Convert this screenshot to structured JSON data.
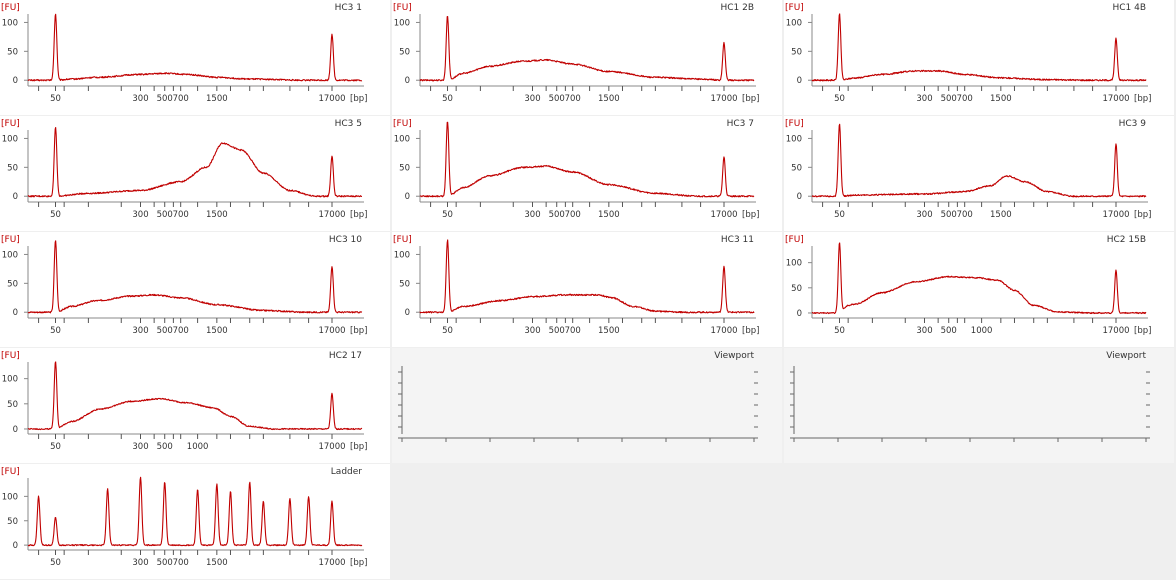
{
  "axis": {
    "y_unit": "[FU]",
    "x_unit": "[bp]",
    "x_scale": "log",
    "minor_ticks_bp": [
      35,
      50,
      60,
      100,
      200,
      300,
      400,
      500,
      600,
      700,
      1000,
      1500,
      2000,
      3000,
      4000,
      7000,
      10380,
      17000
    ]
  },
  "chart_data": [
    {
      "type": "line",
      "title": "HC3 1",
      "x_tick_labels": [
        "50",
        "300",
        "500",
        "700",
        "1500",
        "17000"
      ],
      "y_tick_labels": [
        "0",
        "50",
        "100"
      ],
      "ylim": [
        -10,
        125
      ],
      "lower_marker": {
        "bp": 50,
        "fu": 115
      },
      "upper_marker": {
        "bp": 17000,
        "fu": 80
      },
      "smear": [
        [
          50,
          0
        ],
        [
          70,
          2
        ],
        [
          120,
          5
        ],
        [
          300,
          10
        ],
        [
          500,
          12
        ],
        [
          800,
          10
        ],
        [
          1500,
          5
        ],
        [
          3000,
          2
        ],
        [
          10000,
          0
        ]
      ]
    },
    {
      "type": "line",
      "title": "HC1 2B",
      "x_tick_labels": [
        "50",
        "300",
        "500",
        "700",
        "1500",
        "17000"
      ],
      "y_tick_labels": [
        "0",
        "50",
        "100"
      ],
      "ylim": [
        -10,
        125
      ],
      "lower_marker": {
        "bp": 50,
        "fu": 112
      },
      "upper_marker": {
        "bp": 17000,
        "fu": 65
      },
      "smear": [
        [
          50,
          0
        ],
        [
          70,
          12
        ],
        [
          120,
          24
        ],
        [
          250,
          33
        ],
        [
          400,
          35
        ],
        [
          700,
          28
        ],
        [
          1500,
          15
        ],
        [
          4000,
          5
        ],
        [
          10000,
          2
        ],
        [
          17000,
          0
        ]
      ]
    },
    {
      "type": "line",
      "title": "HC1 4B",
      "x_tick_labels": [
        "50",
        "300",
        "500",
        "700",
        "1500",
        "17000"
      ],
      "y_tick_labels": [
        "0",
        "50",
        "100"
      ],
      "ylim": [
        -10,
        125
      ],
      "lower_marker": {
        "bp": 50,
        "fu": 115
      },
      "upper_marker": {
        "bp": 17000,
        "fu": 72
      },
      "smear": [
        [
          50,
          0
        ],
        [
          70,
          4
        ],
        [
          120,
          10
        ],
        [
          250,
          16
        ],
        [
          400,
          16
        ],
        [
          700,
          10
        ],
        [
          1500,
          4
        ],
        [
          4000,
          1
        ],
        [
          10000,
          0
        ]
      ]
    },
    {
      "type": "line",
      "title": "HC3 5",
      "x_tick_labels": [
        "50",
        "300",
        "500",
        "700",
        "1500",
        "17000"
      ],
      "y_tick_labels": [
        "0",
        "50",
        "100"
      ],
      "ylim": [
        -10,
        125
      ],
      "lower_marker": {
        "bp": 50,
        "fu": 120
      },
      "upper_marker": {
        "bp": 17000,
        "fu": 70
      },
      "smear": [
        [
          50,
          0
        ],
        [
          100,
          5
        ],
        [
          300,
          10
        ],
        [
          700,
          25
        ],
        [
          1200,
          50
        ],
        [
          1700,
          92
        ],
        [
          2500,
          80
        ],
        [
          4000,
          40
        ],
        [
          7000,
          10
        ],
        [
          12000,
          0
        ]
      ]
    },
    {
      "type": "line",
      "title": "HC3 7",
      "x_tick_labels": [
        "50",
        "300",
        "500",
        "700",
        "1500",
        "17000"
      ],
      "y_tick_labels": [
        "0",
        "50",
        "100"
      ],
      "ylim": [
        -10,
        125
      ],
      "lower_marker": {
        "bp": 50,
        "fu": 130
      },
      "upper_marker": {
        "bp": 17000,
        "fu": 68
      },
      "smear": [
        [
          50,
          0
        ],
        [
          70,
          15
        ],
        [
          120,
          35
        ],
        [
          250,
          50
        ],
        [
          400,
          52
        ],
        [
          700,
          42
        ],
        [
          1500,
          20
        ],
        [
          4000,
          5
        ],
        [
          10000,
          0
        ]
      ]
    },
    {
      "type": "line",
      "title": "HC3 9",
      "x_tick_labels": [
        "50",
        "300",
        "500",
        "700",
        "1500",
        "17000"
      ],
      "y_tick_labels": [
        "0",
        "50",
        "100"
      ],
      "ylim": [
        -10,
        125
      ],
      "lower_marker": {
        "bp": 50,
        "fu": 125
      },
      "upper_marker": {
        "bp": 17000,
        "fu": 90
      },
      "smear": [
        [
          50,
          0
        ],
        [
          70,
          2
        ],
        [
          300,
          4
        ],
        [
          700,
          8
        ],
        [
          1200,
          18
        ],
        [
          1700,
          35
        ],
        [
          2500,
          25
        ],
        [
          4000,
          8
        ],
        [
          7000,
          0
        ]
      ]
    },
    {
      "type": "line",
      "title": "HC3 10",
      "x_tick_labels": [
        "50",
        "300",
        "500",
        "700",
        "1500",
        "17000"
      ],
      "y_tick_labels": [
        "0",
        "50",
        "100"
      ],
      "ylim": [
        -10,
        125
      ],
      "lower_marker": {
        "bp": 50,
        "fu": 125
      },
      "upper_marker": {
        "bp": 17000,
        "fu": 80
      },
      "smear": [
        [
          50,
          0
        ],
        [
          70,
          10
        ],
        [
          120,
          20
        ],
        [
          250,
          28
        ],
        [
          400,
          30
        ],
        [
          700,
          25
        ],
        [
          1500,
          13
        ],
        [
          4000,
          3
        ],
        [
          10000,
          0
        ]
      ]
    },
    {
      "type": "line",
      "title": "HC3 11",
      "x_tick_labels": [
        "50",
        "300",
        "500",
        "700",
        "1500",
        "17000"
      ],
      "y_tick_labels": [
        "0",
        "50",
        "100"
      ],
      "ylim": [
        -10,
        125
      ],
      "lower_marker": {
        "bp": 50,
        "fu": 125
      },
      "upper_marker": {
        "bp": 17000,
        "fu": 80
      },
      "smear": [
        [
          50,
          0
        ],
        [
          70,
          10
        ],
        [
          150,
          20
        ],
        [
          300,
          27
        ],
        [
          600,
          30
        ],
        [
          1200,
          30
        ],
        [
          1600,
          25
        ],
        [
          2500,
          10
        ],
        [
          4000,
          2
        ],
        [
          7000,
          0
        ]
      ]
    },
    {
      "type": "line",
      "title": "HC2 15B",
      "x_tick_labels": [
        "50",
        "300",
        "500",
        "1000",
        "17000"
      ],
      "y_tick_labels": [
        "0",
        "50",
        "100"
      ],
      "ylim": [
        -10,
        145
      ],
      "lower_marker": {
        "bp": 50,
        "fu": 140
      },
      "upper_marker": {
        "bp": 17000,
        "fu": 85
      },
      "smear": [
        [
          50,
          0
        ],
        [
          60,
          15
        ],
        [
          70,
          18
        ],
        [
          120,
          40
        ],
        [
          250,
          62
        ],
        [
          500,
          72
        ],
        [
          900,
          70
        ],
        [
          1400,
          65
        ],
        [
          2000,
          45
        ],
        [
          3000,
          15
        ],
        [
          5000,
          2
        ],
        [
          10000,
          0
        ]
      ]
    },
    {
      "type": "line",
      "title": "HC2 17",
      "x_tick_labels": [
        "50",
        "300",
        "500",
        "1000",
        "17000"
      ],
      "y_tick_labels": [
        "0",
        "50",
        "100"
      ],
      "ylim": [
        -10,
        145
      ],
      "lower_marker": {
        "bp": 50,
        "fu": 135
      },
      "upper_marker": {
        "bp": 17000,
        "fu": 70
      },
      "smear": [
        [
          50,
          0
        ],
        [
          70,
          15
        ],
        [
          130,
          40
        ],
        [
          250,
          55
        ],
        [
          450,
          60
        ],
        [
          800,
          52
        ],
        [
          1400,
          42
        ],
        [
          2000,
          25
        ],
        [
          3000,
          5
        ],
        [
          5000,
          0
        ]
      ]
    },
    {
      "type": "empty",
      "title": "Viewport"
    },
    {
      "type": "empty",
      "title": "Viewport"
    },
    {
      "type": "line",
      "title": "Ladder",
      "x_tick_labels": [
        "50",
        "300",
        "500",
        "700",
        "1500",
        "17000"
      ],
      "y_tick_labels": [
        "0",
        "50",
        "100"
      ],
      "ylim": [
        -10,
        150
      ],
      "peaks": [
        [
          35,
          100
        ],
        [
          50,
          58
        ],
        [
          150,
          115
        ],
        [
          300,
          140
        ],
        [
          500,
          130
        ],
        [
          1000,
          115
        ],
        [
          1500,
          125
        ],
        [
          2000,
          110
        ],
        [
          3000,
          130
        ],
        [
          4000,
          90
        ],
        [
          7000,
          95
        ],
        [
          10380,
          100
        ],
        [
          17000,
          90
        ]
      ]
    }
  ]
}
